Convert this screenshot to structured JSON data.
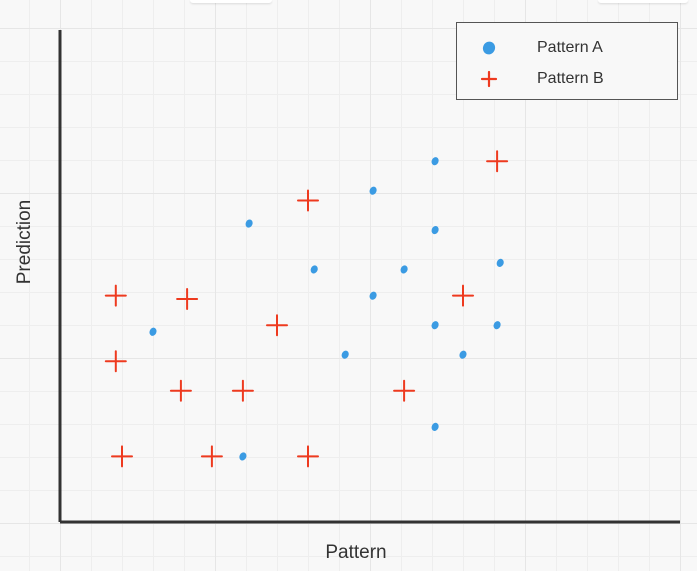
{
  "colors": {
    "pattern_a": "#3b9be3",
    "pattern_b": "#ee3a1f",
    "axis": "#333333"
  },
  "chart_data": {
    "type": "scatter",
    "title": "",
    "xlabel": "Pattern",
    "ylabel": "Prediction",
    "xlim": [
      0,
      20
    ],
    "ylim": [
      0,
      15
    ],
    "grid": true,
    "legend_position": "top-right",
    "series": [
      {
        "name": "Pattern A",
        "marker": "dot",
        "color": "#3b9be3",
        "points": [
          [
            6.1,
            9.1
          ],
          [
            8.2,
            7.7
          ],
          [
            10.1,
            10.1
          ],
          [
            12.1,
            8.9
          ],
          [
            11.1,
            7.7
          ],
          [
            14.2,
            7.9
          ],
          [
            3.0,
            5.8
          ],
          [
            10.1,
            6.9
          ],
          [
            12.1,
            6.0
          ],
          [
            14.1,
            6.0
          ],
          [
            9.2,
            5.1
          ],
          [
            13.0,
            5.1
          ],
          [
            12.1,
            2.9
          ],
          [
            5.9,
            2.0
          ],
          [
            12.1,
            11.0
          ]
        ]
      },
      {
        "name": "Pattern B",
        "marker": "plus",
        "color": "#ee3a1f",
        "points": [
          [
            14.1,
            11.0
          ],
          [
            8.0,
            9.8
          ],
          [
            1.8,
            6.9
          ],
          [
            4.1,
            6.8
          ],
          [
            13.0,
            6.9
          ],
          [
            7.0,
            6.0
          ],
          [
            1.8,
            4.9
          ],
          [
            3.9,
            4.0
          ],
          [
            5.9,
            4.0
          ],
          [
            11.1,
            4.0
          ],
          [
            2.0,
            2.0
          ],
          [
            4.9,
            2.0
          ],
          [
            8.0,
            2.0
          ]
        ]
      }
    ]
  }
}
